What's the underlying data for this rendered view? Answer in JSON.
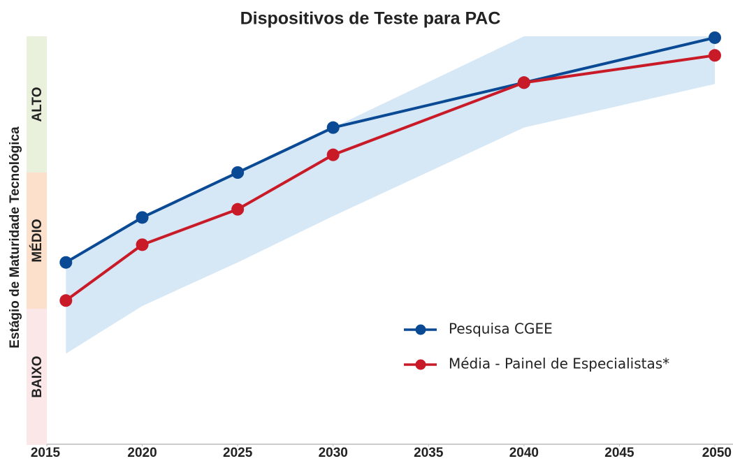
{
  "chart_data": {
    "type": "line",
    "title": "Dispositivos de Teste para PAC",
    "y_label": "Estágio de Maturidade Tecnológica",
    "xlim": [
      2015,
      2050
    ],
    "xticks": [
      2015,
      2020,
      2025,
      2030,
      2035,
      2040,
      2045,
      2050
    ],
    "ylim": [
      0,
      3
    ],
    "y_bands": [
      {
        "label": "BAIXO",
        "from": 0,
        "to": 1,
        "color": "#fbe7e8"
      },
      {
        "label": "MÉDIO",
        "from": 1,
        "to": 2,
        "color": "#fde0cb"
      },
      {
        "label": "ALTO",
        "from": 2,
        "to": 3,
        "color": "#e9f0dc"
      }
    ],
    "band": {
      "x": [
        2016,
        2020,
        2025,
        2030,
        2040,
        2050
      ],
      "upper": [
        1.34,
        1.67,
        2.0,
        2.33,
        3.0,
        3.0
      ],
      "lower": [
        0.67,
        1.02,
        1.34,
        1.68,
        2.33,
        2.65
      ],
      "color": "#d6e8f6"
    },
    "x": [
      2016,
      2020,
      2025,
      2030,
      2040,
      2050
    ],
    "series": [
      {
        "name": "Pesquisa CGEE",
        "color": "#0a4a94",
        "values": [
          1.34,
          1.67,
          2.0,
          2.33,
          2.66,
          2.99
        ]
      },
      {
        "name": "Média - Painel de Especialistas*",
        "color": "#c91a28",
        "values": [
          1.06,
          1.47,
          1.73,
          2.13,
          2.66,
          2.86
        ]
      }
    ],
    "legend": "lower right"
  }
}
